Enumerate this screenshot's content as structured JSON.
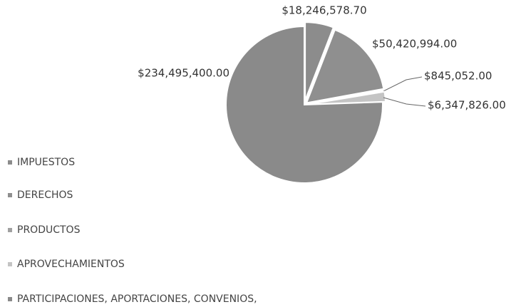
{
  "chart_data": {
    "type": "pie",
    "categories": [
      "IMPUESTOS",
      "DERECHOS",
      "PRODUCTOS",
      "APROVECHAMIENTOS",
      "PARTICIPACIONES, APORTACIONES, CONVENIOS,"
    ],
    "values": [
      18246578.7,
      50420994.0,
      845052.0,
      6347826.0,
      234495400.0
    ],
    "value_labels": [
      "$18,246,578.70",
      "$50,420,994.00",
      "$845,052.00",
      "$6,347,826.00",
      "$234,495,400.00"
    ],
    "colors": [
      "#8c8c8c",
      "#8f8f8f",
      "#a0a0a0",
      "#c4c4c4",
      "#8a8a8a"
    ]
  }
}
